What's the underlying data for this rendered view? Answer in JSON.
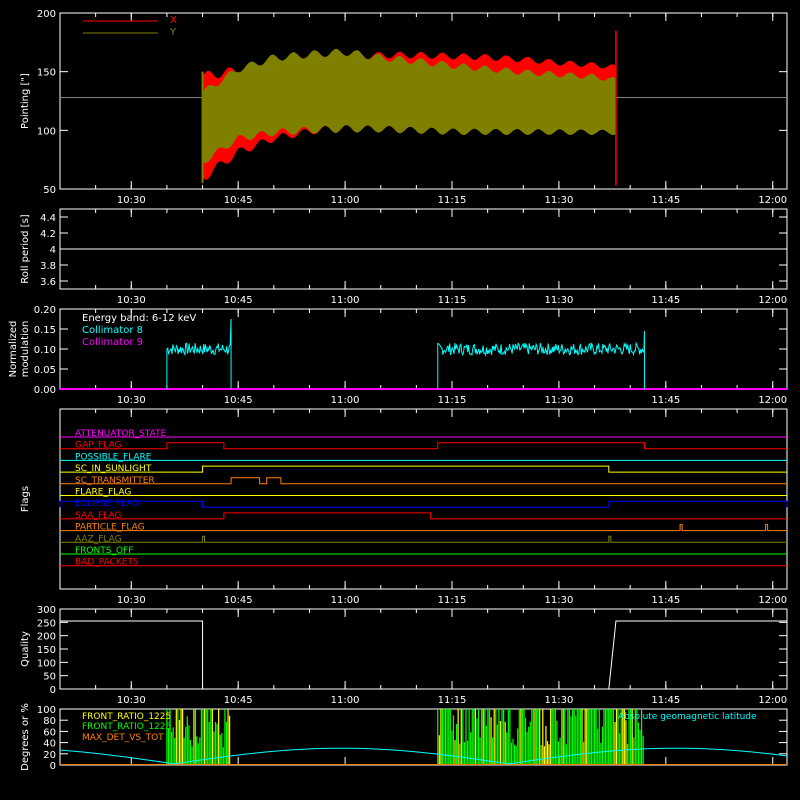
{
  "colors": {
    "white": "#ffffff",
    "red": "#ff0000",
    "olive": "#808000",
    "cyan": "#00ffff",
    "magenta": "#ff00ff",
    "green": "#00ff00",
    "yellow": "#ffff00",
    "orange": "#ff8000",
    "blue": "#0000ff",
    "ref_line": "#808080"
  },
  "chart_data": [
    {
      "id": "pointing",
      "type": "area",
      "ylabel": "Pointing [\"]",
      "ylim": [
        50,
        200
      ],
      "yticks": [
        50,
        100,
        150,
        200
      ],
      "x_range": [
        "10:20",
        "12:02"
      ],
      "x_ticks": [
        "10:30",
        "10:45",
        "11:00",
        "11:15",
        "11:30",
        "11:45",
        "12:00"
      ],
      "legend": [
        {
          "name": "X",
          "color": "#ff0000"
        },
        {
          "name": "Y",
          "color": "#808000"
        }
      ],
      "reference_y": 128,
      "data_start": "10:40",
      "data_end": "11:38",
      "series": [
        {
          "name": "X",
          "time": [
            "10:40",
            "10:45",
            "10:50",
            "10:55",
            "11:00",
            "11:05",
            "11:10",
            "11:15",
            "11:20",
            "11:25",
            "11:30",
            "11:35",
            "11:38"
          ],
          "upper": [
            150,
            155,
            160,
            163,
            165,
            167,
            167,
            166,
            165,
            163,
            160,
            158,
            156
          ],
          "lower": [
            55,
            78,
            90,
            96,
            100,
            103,
            104,
            104,
            105,
            106,
            107,
            107,
            108
          ]
        },
        {
          "name": "Y",
          "time": [
            "10:40",
            "10:45",
            "10:50",
            "10:55",
            "11:00",
            "11:05",
            "11:10",
            "11:15",
            "11:20",
            "11:25",
            "11:30",
            "11:35",
            "11:38"
          ],
          "upper": [
            135,
            155,
            165,
            168,
            170,
            165,
            162,
            158,
            155,
            152,
            150,
            148,
            145
          ],
          "lower": [
            70,
            90,
            95,
            97,
            98,
            98,
            97,
            96,
            96,
            96,
            96,
            96,
            96
          ]
        }
      ]
    },
    {
      "id": "roll",
      "type": "line",
      "ylabel": "Roll period [s]",
      "ylim": [
        3.5,
        4.5
      ],
      "yticks": [
        3.6,
        3.8,
        4.0,
        4.2,
        4.4
      ],
      "x_ticks": [
        "10:30",
        "10:45",
        "11:00",
        "11:15",
        "11:30",
        "11:45",
        "12:00"
      ],
      "series": [
        {
          "name": "",
          "time": [
            "10:20",
            "12:02"
          ],
          "values": [
            4.0,
            4.0
          ]
        }
      ]
    },
    {
      "id": "modulation",
      "type": "line",
      "ylabel": [
        "Normalized",
        "modulation"
      ],
      "ylim": [
        0,
        0.2
      ],
      "yticks": [
        0.0,
        0.05,
        0.1,
        0.15,
        0.2
      ],
      "ytick_labels": [
        "0.00",
        "0.05",
        "0.10",
        "0.15",
        "0.20"
      ],
      "x_ticks": [
        "10:30",
        "10:45",
        "11:00",
        "11:15",
        "11:30",
        "11:45",
        "12:00"
      ],
      "annotation": "Energy band: 6-12 keV",
      "legend": [
        {
          "name": "Collimator 8",
          "color": "#00ffff"
        },
        {
          "name": "Collimator 9",
          "color": "#ff00ff"
        }
      ],
      "series": [
        {
          "name": "Collimator 8",
          "segments": [
            {
              "start": "10:35",
              "end": "10:44",
              "mean": 0.1,
              "spread": 0.015,
              "spike": 0.175
            },
            {
              "start": "11:13",
              "end": "11:42",
              "mean": 0.1,
              "spread": 0.015,
              "spike": 0.145
            }
          ]
        },
        {
          "name": "Collimator 9",
          "time": [
            "10:20",
            "12:02"
          ],
          "values": [
            0,
            0
          ]
        }
      ]
    },
    {
      "id": "flags",
      "type": "step",
      "ylabel": "Flags",
      "x_ticks": [
        "10:30",
        "10:45",
        "11:00",
        "11:15",
        "11:30",
        "11:45",
        "12:00"
      ],
      "flags": [
        {
          "name": "ATTENUATOR_STATE",
          "color": "#ff00ff",
          "on": []
        },
        {
          "name": "GAP_FLAG",
          "color": "#ff0000",
          "on": [
            [
              "10:35",
              "10:43"
            ],
            [
              "11:13",
              "11:42"
            ]
          ]
        },
        {
          "name": "POSSIBLE_FLARE",
          "color": "#00ffff",
          "on": []
        },
        {
          "name": "SC_IN_SUNLIGHT",
          "color": "#ffff00",
          "on": [
            [
              "10:40",
              "11:37"
            ]
          ]
        },
        {
          "name": "SC_TRANSMITTER",
          "color": "#ff8000",
          "on": [
            [
              "10:44",
              "10:48"
            ],
            [
              "10:49",
              "10:51"
            ]
          ]
        },
        {
          "name": "FLARE_FLAG",
          "color": "#ffff00",
          "on": []
        },
        {
          "name": "ECLIPSE_FLAG",
          "color": "#0000ff",
          "on": [
            [
              "10:20",
              "10:40"
            ],
            [
              "11:37",
              "12:02"
            ]
          ]
        },
        {
          "name": "SAA_FLAG",
          "color": "#ff0000",
          "on": [
            [
              "10:43",
              "11:12"
            ]
          ]
        },
        {
          "name": "PARTICLE_FLAG",
          "color": "#ff8000",
          "on": [
            [
              "11:47",
              "11:47"
            ],
            [
              "11:59",
              "11:59"
            ]
          ]
        },
        {
          "name": "AAZ_FLAG",
          "color": "#808000",
          "on": [
            [
              "10:40",
              "10:40"
            ],
            [
              "11:37",
              "11:37"
            ]
          ]
        },
        {
          "name": "FRONTS_OFF",
          "color": "#00ff00",
          "on": []
        },
        {
          "name": "BAD_PACKETS",
          "color": "#ff0000",
          "on": []
        }
      ]
    },
    {
      "id": "quality",
      "type": "line",
      "ylabel": "Quality",
      "ylim": [
        0,
        300
      ],
      "yticks": [
        0,
        50,
        100,
        150,
        200,
        250,
        300
      ],
      "x_ticks": [
        "10:30",
        "10:45",
        "11:00",
        "11:15",
        "11:30",
        "11:45",
        "12:00"
      ],
      "series": [
        {
          "name": "",
          "time": [
            "10:20",
            "10:40",
            "10:40",
            "11:37",
            "11:38",
            "12:02"
          ],
          "values": [
            255,
            255,
            0,
            0,
            255,
            255
          ]
        }
      ]
    },
    {
      "id": "ratios",
      "type": "bar",
      "ylabel": "Degrees or %",
      "ylim": [
        0,
        100
      ],
      "yticks": [
        0,
        20,
        40,
        60,
        80,
        100
      ],
      "legend": [
        {
          "name": "FRONT_RATIO_1225",
          "color": "#ffff00"
        },
        {
          "name": "FRONT_RATIO_1225",
          "color": "#00ff00"
        },
        {
          "name": "MAX_DET_VS_TOT",
          "color": "#ff8000"
        },
        {
          "name": "Absolute geomagnetic latitude",
          "color": "#00ffff"
        }
      ],
      "bars": [
        {
          "start": "10:35",
          "end": "10:44"
        },
        {
          "start": "11:13",
          "end": "11:42"
        }
      ],
      "latitude": {
        "time": [
          "10:20",
          "10:36",
          "10:52",
          "11:07",
          "11:23",
          "11:38",
          "11:54",
          "12:02"
        ],
        "values": [
          25,
          3,
          28,
          28,
          3,
          28,
          28,
          18
        ]
      }
    }
  ]
}
